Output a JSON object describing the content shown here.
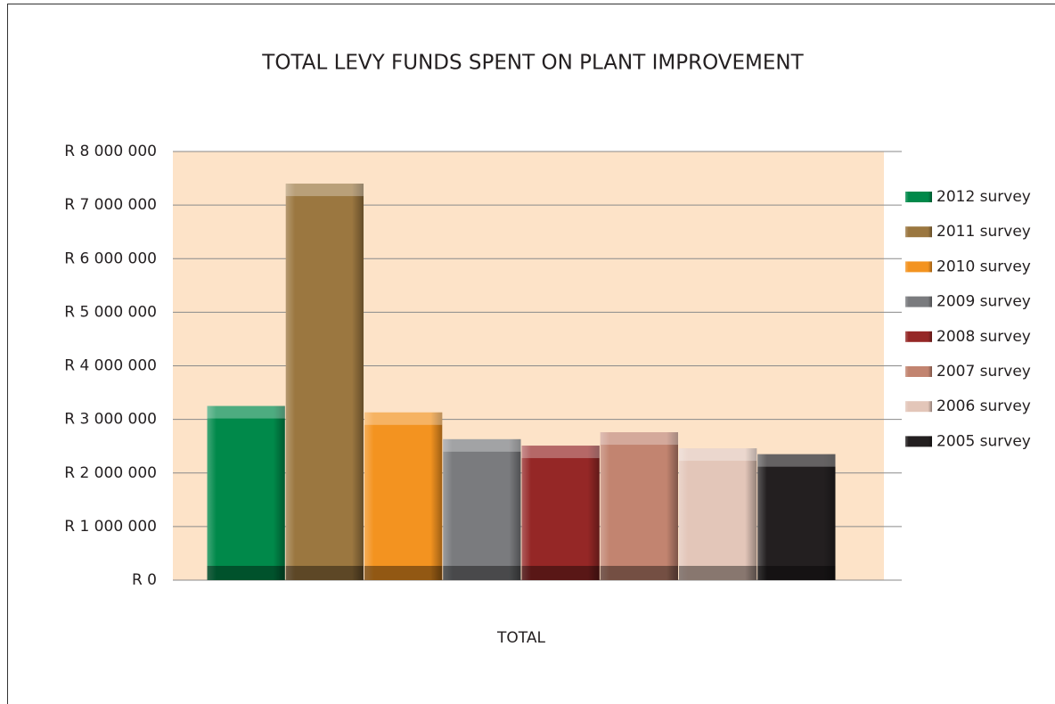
{
  "chart_data": {
    "type": "bar",
    "title": "TOTAL LEVY FUNDS SPENT ON PLANT IMPROVEMENT",
    "categories": [
      "TOTAL"
    ],
    "series": [
      {
        "name": "2012 survey",
        "color": "#00894a",
        "values": [
          3250000
        ]
      },
      {
        "name": "2011 survey",
        "color": "#9b7740",
        "values": [
          7400000
        ]
      },
      {
        "name": "2010 survey",
        "color": "#f39320",
        "values": [
          3130000
        ]
      },
      {
        "name": "2009 survey",
        "color": "#7a7b7e",
        "values": [
          2630000
        ]
      },
      {
        "name": "2008 survey",
        "color": "#952726",
        "values": [
          2510000
        ]
      },
      {
        "name": "2007 survey",
        "color": "#c28470",
        "values": [
          2760000
        ]
      },
      {
        "name": "2006 survey",
        "color": "#e3c6b9",
        "values": [
          2460000
        ]
      },
      {
        "name": "2005 survey",
        "color": "#231f20",
        "values": [
          2350000
        ]
      }
    ],
    "ylim": [
      0,
      8000000
    ],
    "yticks": [
      {
        "value": 0,
        "label": "R 0"
      },
      {
        "value": 1000000,
        "label": "R 1 000 000"
      },
      {
        "value": 2000000,
        "label": "R 2 000 000"
      },
      {
        "value": 3000000,
        "label": "R 3 000 000"
      },
      {
        "value": 4000000,
        "label": "R 4 000 000"
      },
      {
        "value": 5000000,
        "label": "R 5 000 000"
      },
      {
        "value": 6000000,
        "label": "R 6 000 000"
      },
      {
        "value": 7000000,
        "label": "R 7 000 000"
      },
      {
        "value": 8000000,
        "label": "R 8 000 000"
      }
    ],
    "grid": true,
    "legend": "right",
    "plot_background": "#fde3c8"
  }
}
